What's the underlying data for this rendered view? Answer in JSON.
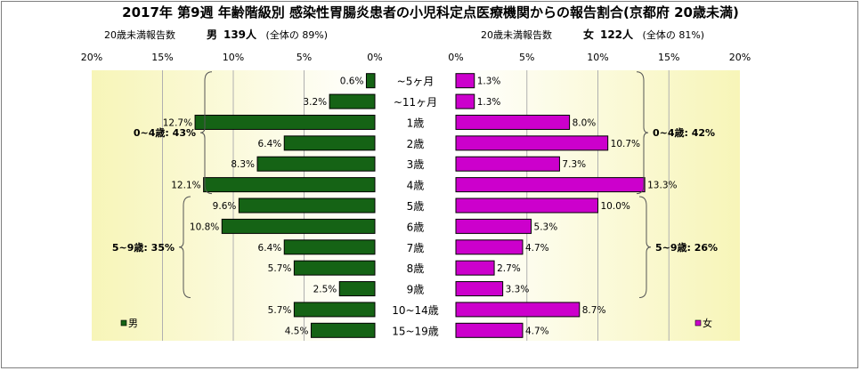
{
  "title": "2017年 第9週 年齢階級別 感染性胃腸炎患者の小児科定点医療機関からの報告割合(京都府 20歳未満)",
  "male_header": {
    "label": "20歳未満報告数",
    "sex": "男",
    "count": "139人",
    "share": "(全体の 89%)"
  },
  "female_header": {
    "label": "20歳未満報告数",
    "sex": "女",
    "count": "122人",
    "share": "(全体の 81%)"
  },
  "colors": {
    "male": "#156315",
    "female": "#cc00cc",
    "plot_bg_light": "#ffffff",
    "plot_bg_dark": "#f7f5b8"
  },
  "chart_data": {
    "type": "bar",
    "orientation": "horizontal-population-pyramid",
    "categories": [
      "~5ヶ月",
      "~11ヶ月",
      "1歳",
      "2歳",
      "3歳",
      "4歳",
      "5歳",
      "6歳",
      "7歳",
      "8歳",
      "9歳",
      "10~14歳",
      "15~19歳"
    ],
    "series": [
      {
        "name": "男",
        "values": [
          0.6,
          3.2,
          12.7,
          6.4,
          8.3,
          12.1,
          9.6,
          10.8,
          6.4,
          5.7,
          2.5,
          5.7,
          4.5
        ],
        "labels": [
          "0.6%",
          "3.2%",
          "12.7%",
          "6.4%",
          "8.3%",
          "12.1%",
          "9.6%",
          "10.8%",
          "6.4%",
          "5.7%",
          "2.5%",
          "5.7%",
          "4.5%"
        ],
        "axis_ticks": [
          "20%",
          "15%",
          "10%",
          "5%",
          "0%"
        ],
        "groups": [
          {
            "label": "0~4歳: 43%",
            "from": 0,
            "to": 5
          },
          {
            "label": "5~9歳: 35%",
            "from": 6,
            "to": 10
          }
        ]
      },
      {
        "name": "女",
        "values": [
          1.3,
          1.3,
          8.0,
          10.7,
          7.3,
          13.3,
          10.0,
          5.3,
          4.7,
          2.7,
          3.3,
          8.7,
          4.7
        ],
        "labels": [
          "1.3%",
          "1.3%",
          "8.0%",
          "10.7%",
          "7.3%",
          "13.3%",
          "10.0%",
          "5.3%",
          "4.7%",
          "2.7%",
          "3.3%",
          "8.7%",
          "4.7%"
        ],
        "axis_ticks": [
          "0%",
          "5%",
          "10%",
          "15%",
          "20%"
        ],
        "groups": [
          {
            "label": "0~4歳: 42%",
            "from": 0,
            "to": 5
          },
          {
            "label": "5~9歳: 26%",
            "from": 6,
            "to": 10
          }
        ]
      }
    ],
    "xlim": [
      0,
      20
    ],
    "grid": true,
    "legend": "bottom-left (男) / bottom-right (女)"
  }
}
